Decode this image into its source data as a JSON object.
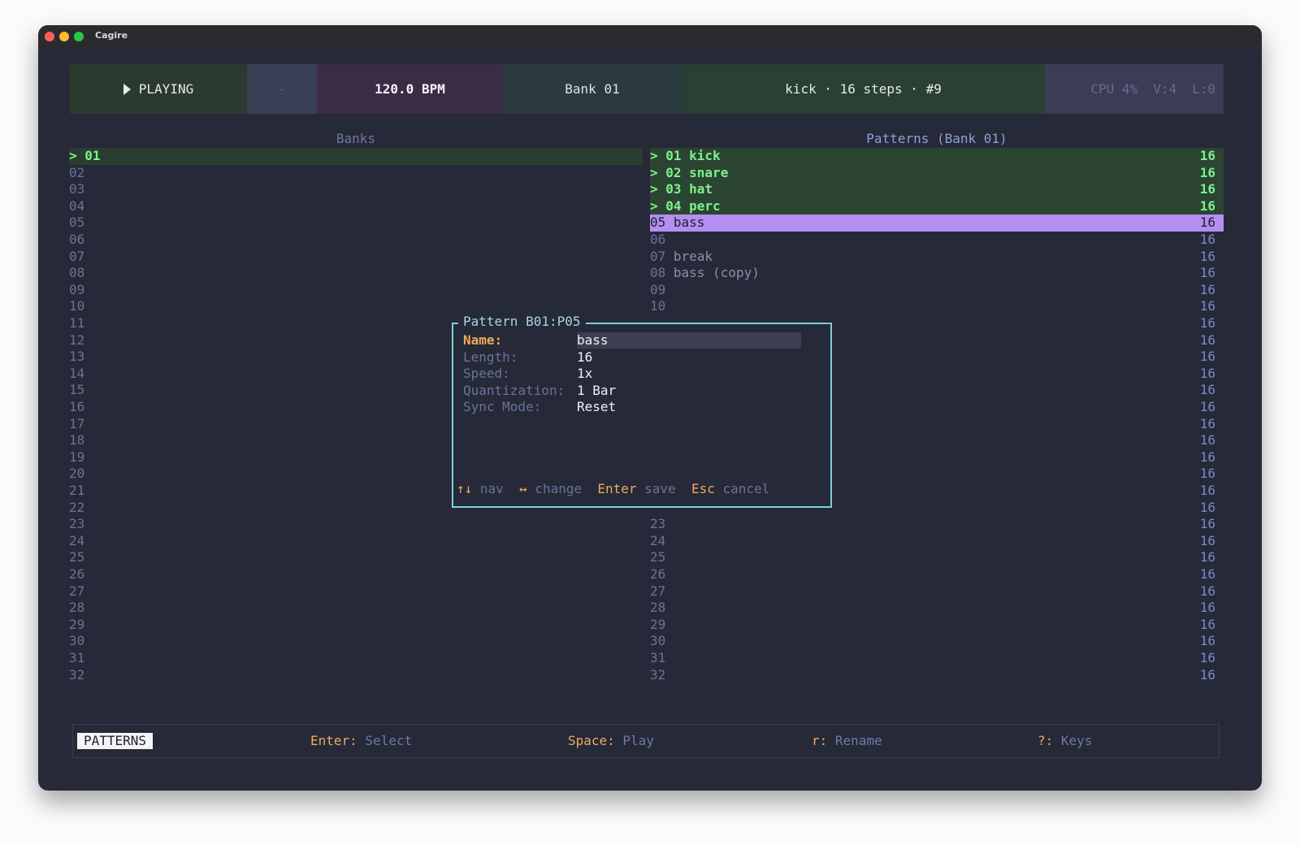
{
  "window": {
    "title": "Cagire"
  },
  "header": {
    "status": "PLAYING",
    "slot": "-",
    "tempo": "120.0 BPM",
    "bank": "Bank 01",
    "pattern": "kick · 16 steps · #9",
    "cpu": "CPU 4%",
    "voices": "V:4",
    "latency": "L:0"
  },
  "banks": {
    "title": "Banks",
    "cursor": ">",
    "selected": 0,
    "rows": [
      "01",
      "02",
      "03",
      "04",
      "05",
      "06",
      "07",
      "08",
      "09",
      "10",
      "11",
      "12",
      "13",
      "14",
      "15",
      "16",
      "17",
      "18",
      "19",
      "20",
      "21",
      "22",
      "23",
      "24",
      "25",
      "26",
      "27",
      "28",
      "29",
      "30",
      "31",
      "32"
    ]
  },
  "patterns": {
    "title": "Patterns (Bank 01)",
    "marker": ">",
    "selected": 4,
    "rows": [
      {
        "number": "01",
        "name": "kick",
        "length": 16,
        "playing": true
      },
      {
        "number": "02",
        "name": "snare",
        "length": 16,
        "playing": true
      },
      {
        "number": "03",
        "name": "hat",
        "length": 16,
        "playing": true
      },
      {
        "number": "04",
        "name": "perc",
        "length": 16,
        "playing": true
      },
      {
        "number": "05",
        "name": "bass",
        "length": 16
      },
      {
        "number": "06",
        "length": 16
      },
      {
        "number": "07",
        "name": "break",
        "length": 16
      },
      {
        "number": "08",
        "name": "bass (copy)",
        "length": 16
      },
      {
        "number": "09",
        "length": 16
      },
      {
        "number": "10",
        "length": 16
      },
      {
        "length": 16
      },
      {
        "length": 16
      },
      {
        "length": 16
      },
      {
        "length": 16
      },
      {
        "length": 16
      },
      {
        "length": 16
      },
      {
        "length": 16
      },
      {
        "length": 16
      },
      {
        "length": 16
      },
      {
        "length": 16
      },
      {
        "length": 16
      },
      {
        "length": 16
      },
      {
        "number": "23",
        "length": 16
      },
      {
        "number": "24",
        "length": 16
      },
      {
        "number": "25",
        "length": 16
      },
      {
        "number": "26",
        "length": 16
      },
      {
        "number": "27",
        "length": 16
      },
      {
        "number": "28",
        "length": 16
      },
      {
        "number": "29",
        "length": 16
      },
      {
        "number": "30",
        "length": 16
      },
      {
        "number": "31",
        "length": 16
      },
      {
        "number": "32",
        "length": 16
      }
    ]
  },
  "modal": {
    "title": "Pattern B01:P05",
    "fields": [
      {
        "label": "Name:",
        "value": "bass"
      },
      {
        "label": "Length:",
        "value": "16"
      },
      {
        "label": "Speed:",
        "value": "1x"
      },
      {
        "label": "Quantization:",
        "value": "1 Bar"
      },
      {
        "label": "Sync Mode:",
        "value": "Reset"
      }
    ],
    "hints": [
      {
        "key": "↑↓",
        "action": "nav"
      },
      {
        "key": "↔",
        "action": "change"
      },
      {
        "key": "Enter",
        "action": "save"
      },
      {
        "key": "Esc",
        "action": "cancel"
      }
    ]
  },
  "footer": {
    "mode": "PATTERNS",
    "hints": [
      {
        "key": "Enter:",
        "action": "Select"
      },
      {
        "key": "Space:",
        "action": "Play"
      },
      {
        "key": "r:",
        "action": "Rename"
      },
      {
        "key": "?:",
        "action": "Keys"
      }
    ]
  }
}
